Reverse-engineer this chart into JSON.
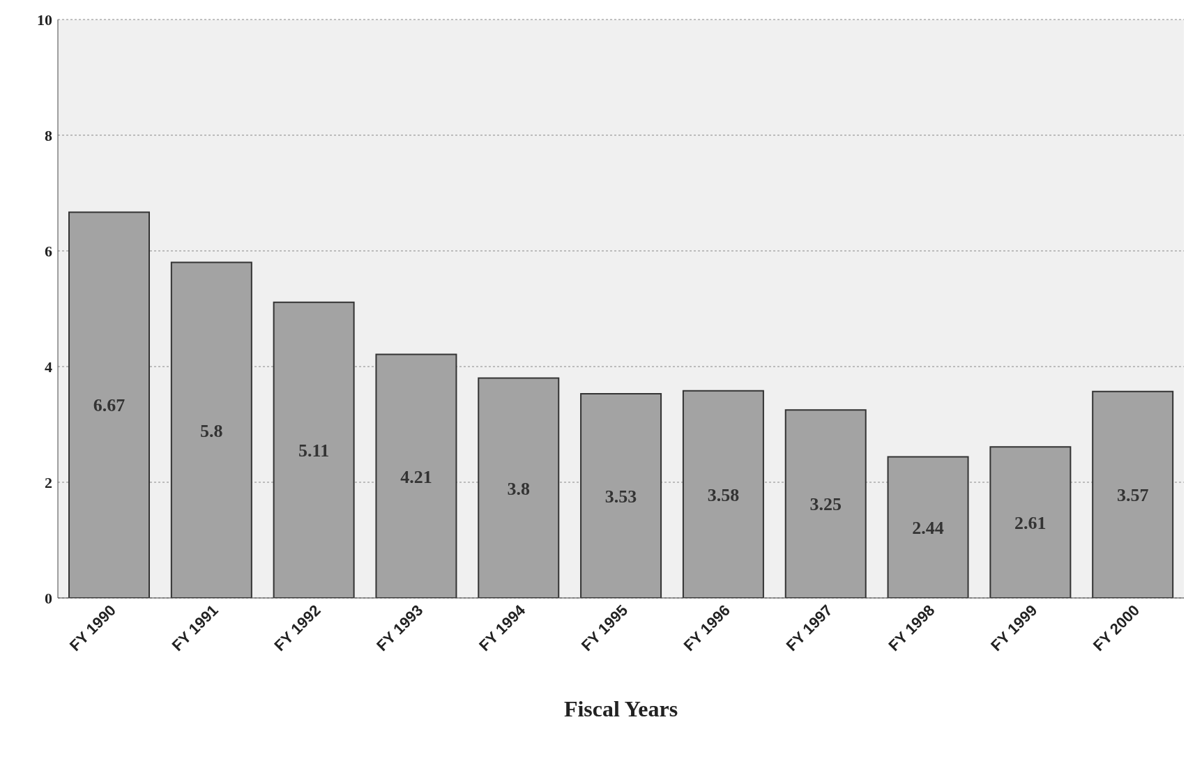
{
  "chart_data": {
    "type": "bar",
    "xlabel": "Fiscal Years",
    "categories": [
      "FY 1990",
      "FY 1991",
      "FY 1992",
      "FY 1993",
      "FY 1994",
      "FY 1995",
      "FY 1996",
      "FY 1997",
      "FY 1998",
      "FY 1999",
      "FY 2000"
    ],
    "values": [
      6.67,
      5.8,
      5.11,
      4.21,
      3.8,
      3.53,
      3.58,
      3.25,
      2.44,
      2.61,
      3.57
    ],
    "color": "#a3a3a3",
    "ylim": [
      0,
      10
    ],
    "yticks": [
      0,
      2,
      4,
      6,
      8,
      10
    ],
    "grid": "y",
    "data_labels": true
  }
}
